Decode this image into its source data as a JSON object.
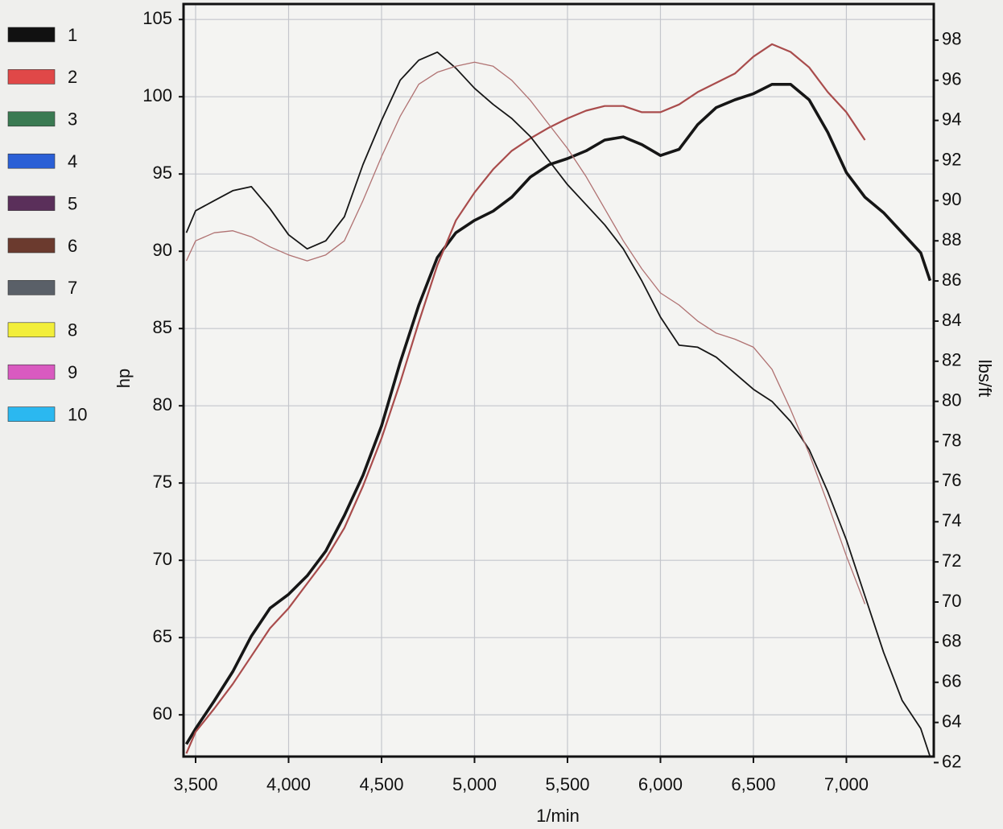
{
  "chart_data": {
    "type": "line",
    "x_label": "1/min",
    "y_label": "hp",
    "y2_label": "lbs/ft",
    "grid": true,
    "legend": [
      {
        "label": "1",
        "color": "#111111"
      },
      {
        "label": "2",
        "color": "#e04848"
      },
      {
        "label": "3",
        "color": "#3a7a52"
      },
      {
        "label": "4",
        "color": "#2a5fd6"
      },
      {
        "label": "5",
        "color": "#5a2f5a"
      },
      {
        "label": "6",
        "color": "#6b3a2e"
      },
      {
        "label": "7",
        "color": "#5a6068"
      },
      {
        "label": "8",
        "color": "#f2ee3a"
      },
      {
        "label": "9",
        "color": "#d95ac0"
      },
      {
        "label": "10",
        "color": "#2bb8f0"
      }
    ],
    "xlim": [
      3435,
      7470
    ],
    "xticks": [
      {
        "value": 3500,
        "label": "3,500"
      },
      {
        "value": 4000,
        "label": "4,000"
      },
      {
        "value": 4500,
        "label": "4,500"
      },
      {
        "value": 5000,
        "label": "5,000"
      },
      {
        "value": 5500,
        "label": "5,500"
      },
      {
        "value": 6000,
        "label": "6,000"
      },
      {
        "value": 6500,
        "label": "6,500"
      },
      {
        "value": 7000,
        "label": "7,000"
      }
    ],
    "ylim": [
      57.3,
      106
    ],
    "yticks": [
      60,
      65,
      70,
      75,
      80,
      85,
      90,
      95,
      100,
      105
    ],
    "y2lim": [
      62.3,
      99.8
    ],
    "y2ticks": [
      62,
      64,
      66,
      68,
      70,
      72,
      74,
      76,
      78,
      80,
      82,
      84,
      86,
      88,
      90,
      92,
      94,
      96,
      98
    ],
    "x": [
      3450,
      3500,
      3600,
      3700,
      3800,
      3900,
      4000,
      4100,
      4200,
      4300,
      4400,
      4500,
      4600,
      4700,
      4800,
      4900,
      5000,
      5100,
      5200,
      5300,
      5400,
      5500,
      5600,
      5700,
      5800,
      5900,
      6000,
      6100,
      6200,
      6300,
      6400,
      6500,
      6600,
      6700,
      6800,
      6900,
      7000,
      7100,
      7200,
      7300,
      7400,
      7450
    ],
    "series": [
      {
        "color": "#161616",
        "line_width": 3.6,
        "values": [
          58.1,
          59.1,
          60.9,
          62.8,
          65.1,
          66.9,
          67.8,
          69.0,
          70.6,
          72.9,
          75.5,
          78.7,
          82.8,
          86.5,
          89.6,
          91.2,
          92.0,
          92.6,
          93.5,
          94.8,
          95.6,
          96.0,
          96.5,
          97.2,
          97.4,
          96.9,
          96.2,
          96.6,
          98.2,
          99.3,
          99.8,
          100.2,
          100.8,
          100.8,
          99.8,
          97.7,
          95.1,
          93.5,
          92.5,
          91.2,
          89.9,
          88.1
        ]
      },
      {
        "color": "#a94c4c",
        "line_width": 2.2,
        "values": [
          57.5,
          58.9,
          60.4,
          62.0,
          63.8,
          65.6,
          66.9,
          68.5,
          70.1,
          72.1,
          74.8,
          77.9,
          81.5,
          85.4,
          89.1,
          92.0,
          93.8,
          95.3,
          96.5,
          97.3,
          98.0,
          98.6,
          99.1,
          99.4,
          99.4,
          99.0,
          99.0,
          99.5,
          100.3,
          100.9,
          101.5,
          102.6,
          103.4,
          102.9,
          101.9,
          100.3,
          99.0,
          97.2,
          null,
          null,
          null,
          null
        ]
      },
      {
        "color": "#161616",
        "line_width": 1.8,
        "axis": "y2",
        "values": [
          88.4,
          89.5,
          90.0,
          90.5,
          90.7,
          89.6,
          88.3,
          87.6,
          88.0,
          89.2,
          91.8,
          94.0,
          96.0,
          97.0,
          97.4,
          96.6,
          95.6,
          94.8,
          94.1,
          93.2,
          92.0,
          90.8,
          89.8,
          88.8,
          87.6,
          86.0,
          84.2,
          82.8,
          82.7,
          82.2,
          81.4,
          80.6,
          80.0,
          79.0,
          77.6,
          75.5,
          73.1,
          70.3,
          67.5,
          65.1,
          63.7,
          62.3
        ]
      },
      {
        "color": "#b07272",
        "line_width": 1.3,
        "axis": "y2",
        "values": [
          87.0,
          88.0,
          88.4,
          88.5,
          88.2,
          87.7,
          87.3,
          87.0,
          87.3,
          88.0,
          90.0,
          92.2,
          94.2,
          95.8,
          96.4,
          96.7,
          96.9,
          96.7,
          96.0,
          95.0,
          93.8,
          92.6,
          91.2,
          89.6,
          88.0,
          86.6,
          85.4,
          84.8,
          84.0,
          83.4,
          83.1,
          82.7,
          81.6,
          79.6,
          77.4,
          74.9,
          72.3,
          69.9,
          null,
          null,
          null,
          null
        ]
      }
    ]
  }
}
